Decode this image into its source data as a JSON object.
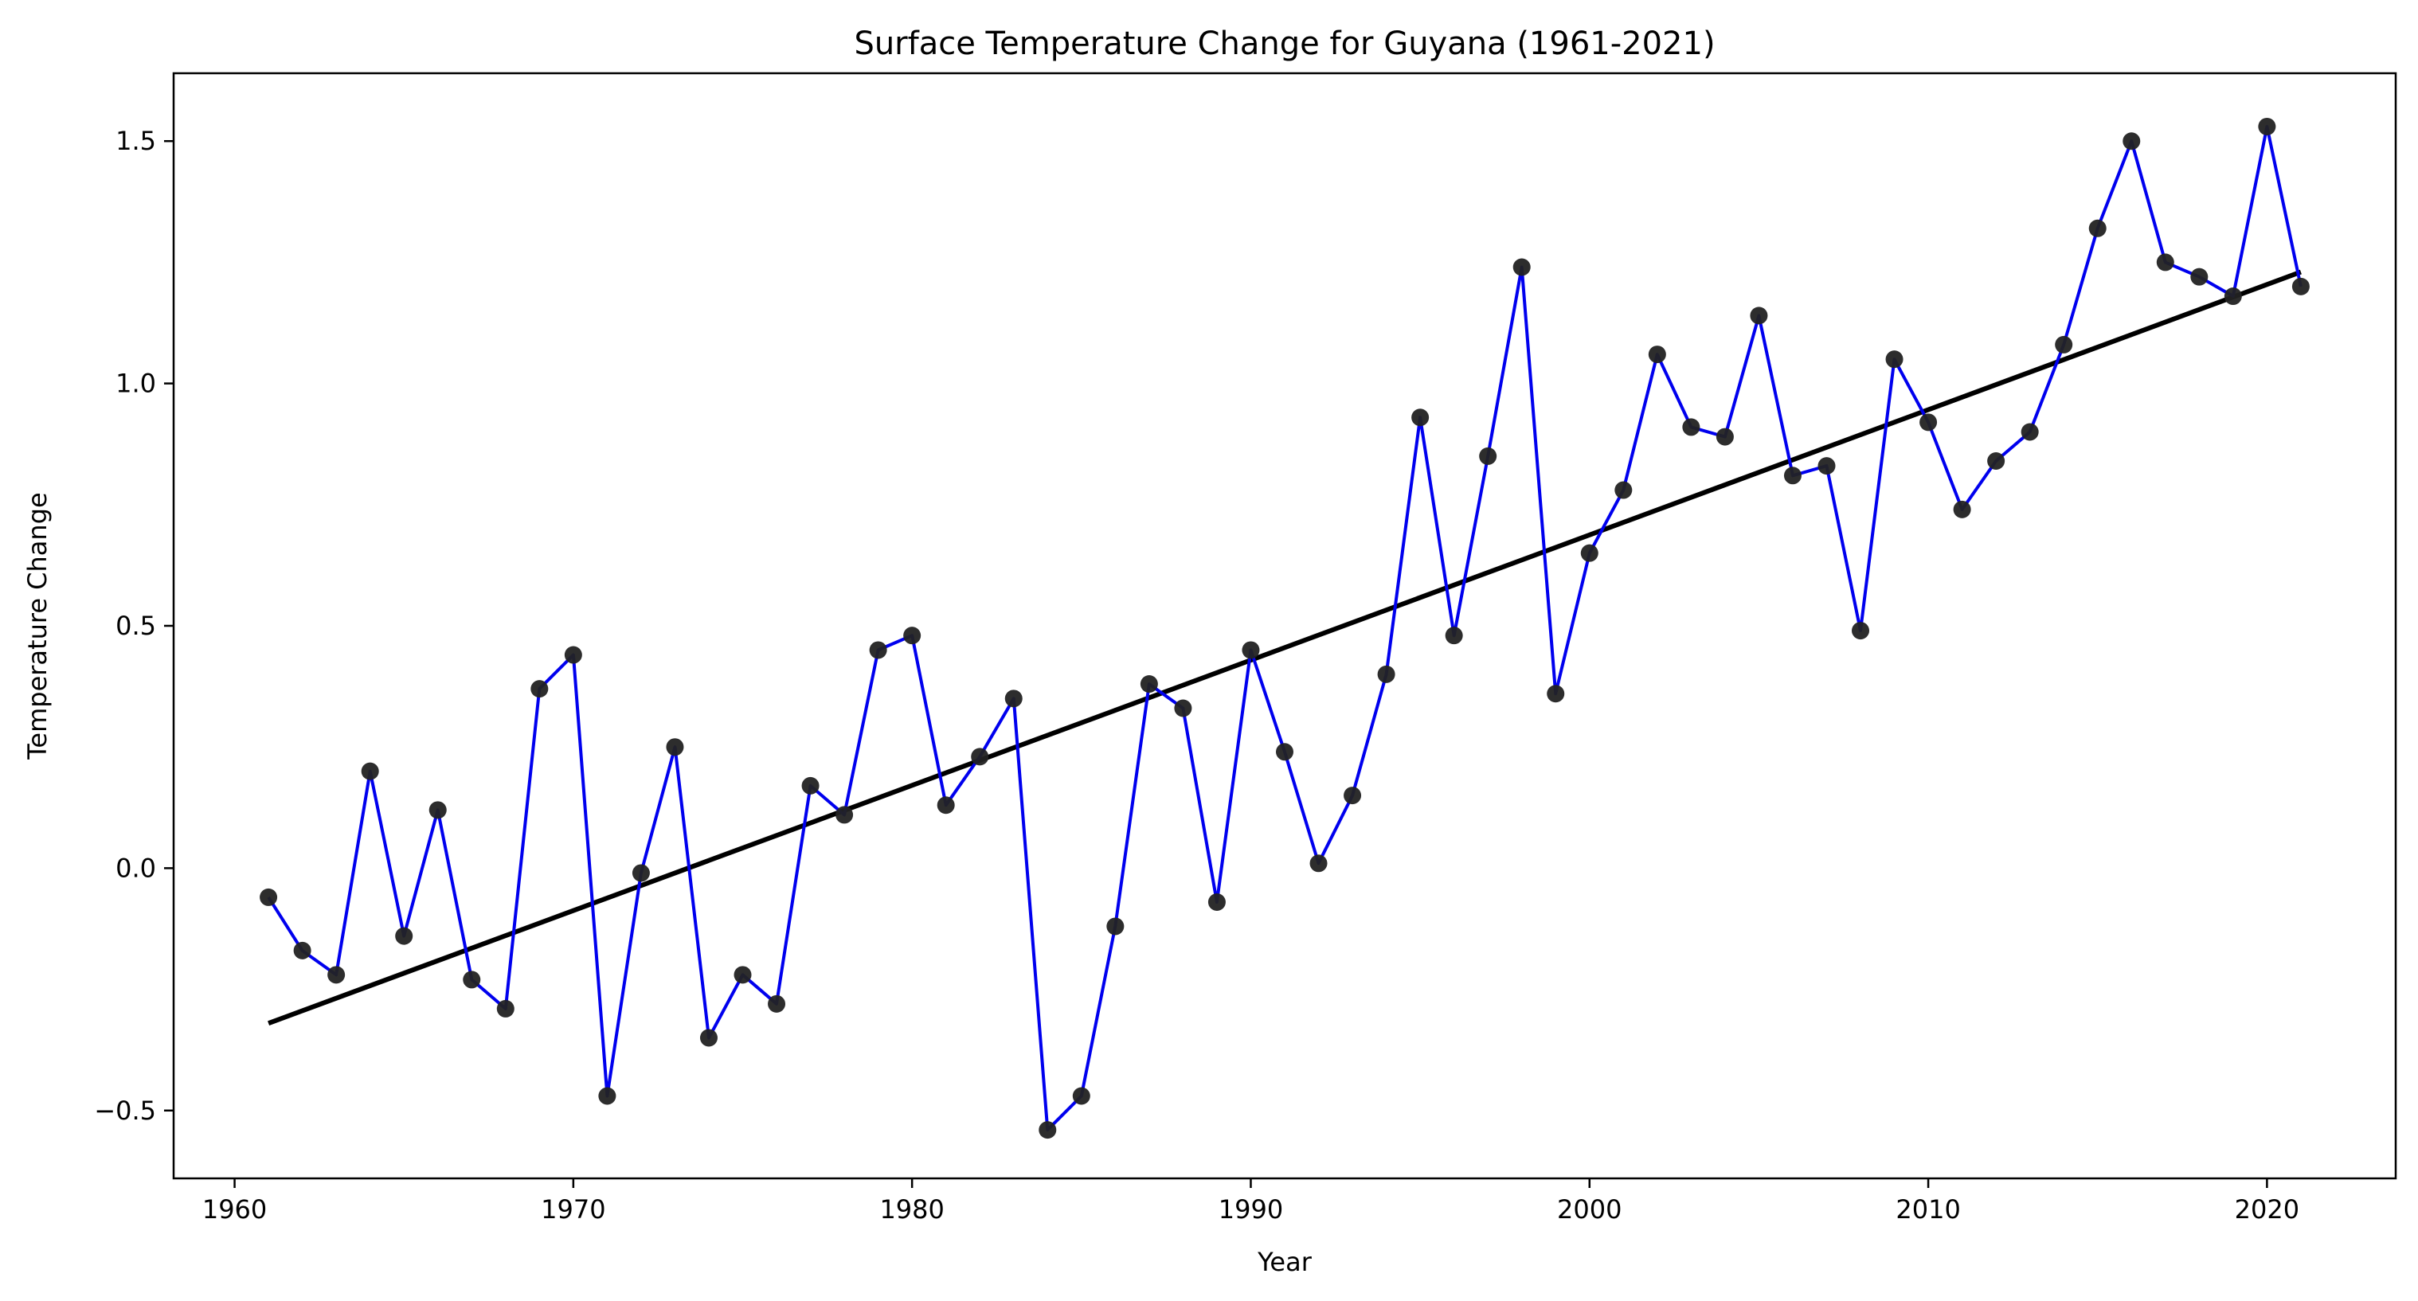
{
  "chart_data": {
    "type": "line",
    "title": "Surface Temperature Change for Guyana (1961-2021)",
    "xlabel": "Year",
    "ylabel": "Temperature Change",
    "xlim": [
      1958.2,
      2023.8
    ],
    "ylim": [
      -0.64,
      1.64
    ],
    "xticks": [
      1960,
      1970,
      1980,
      1990,
      2000,
      2010,
      2020
    ],
    "yticks": [
      -0.5,
      0.0,
      0.5,
      1.0,
      1.5
    ],
    "ytick_labels": [
      "−0.5",
      "0.0",
      "0.5",
      "1.0",
      "1.5"
    ],
    "grid": false,
    "legend": "none",
    "series": [
      {
        "color": "#0000ee",
        "marker_color": "#222222",
        "x": [
          1961,
          1962,
          1963,
          1964,
          1965,
          1966,
          1967,
          1968,
          1969,
          1970,
          1971,
          1972,
          1973,
          1974,
          1975,
          1976,
          1977,
          1978,
          1979,
          1980,
          1981,
          1982,
          1983,
          1984,
          1985,
          1986,
          1987,
          1988,
          1989,
          1990,
          1991,
          1992,
          1993,
          1994,
          1995,
          1996,
          1997,
          1998,
          1999,
          2000,
          2001,
          2002,
          2003,
          2004,
          2005,
          2006,
          2007,
          2008,
          2009,
          2010,
          2011,
          2012,
          2013,
          2014,
          2015,
          2016,
          2017,
          2018,
          2019,
          2020,
          2021
        ],
        "y": [
          -0.06,
          -0.17,
          -0.22,
          0.2,
          -0.14,
          0.12,
          -0.23,
          -0.29,
          0.37,
          0.44,
          -0.47,
          -0.01,
          0.25,
          -0.35,
          -0.22,
          -0.28,
          0.17,
          0.11,
          0.45,
          0.48,
          0.13,
          0.23,
          0.35,
          -0.54,
          -0.47,
          -0.12,
          0.38,
          0.33,
          -0.07,
          0.45,
          0.24,
          0.01,
          0.15,
          0.4,
          0.93,
          0.48,
          0.85,
          1.24,
          0.36,
          0.65,
          0.78,
          1.06,
          0.91,
          0.89,
          1.14,
          0.81,
          0.83,
          0.49,
          1.05,
          0.92,
          0.74,
          0.84,
          0.9,
          1.08,
          1.32,
          1.5,
          1.25,
          1.22,
          1.18,
          1.53,
          1.2
        ]
      }
    ],
    "trendline": {
      "color": "#000000",
      "x": [
        1961,
        2021
      ],
      "y": [
        -0.32,
        1.23
      ]
    }
  }
}
